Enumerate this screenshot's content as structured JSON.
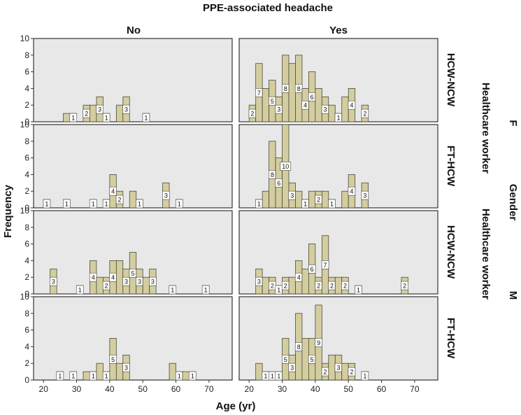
{
  "chart_data": {
    "type": "histogram",
    "title": "PPE-associated headache",
    "xlabel": "Age (yr)",
    "ylabel": "Frequency",
    "right_outer_label": "Gender",
    "right_inner_label": "Healthcare worker",
    "column_panels": [
      "No",
      "Yes"
    ],
    "gender_groups": [
      "F",
      "M"
    ],
    "row_panels": [
      "HCW-NCW",
      "FT-HCW",
      "HCW-NCW",
      "FT-HCW"
    ],
    "xlim": [
      17,
      77
    ],
    "ylim": [
      0,
      10
    ],
    "x_ticks": [
      "20",
      "30",
      "40",
      "50",
      "60",
      "70"
    ],
    "y_ticks": [
      "0",
      "2",
      "4",
      "6",
      "8",
      "10"
    ],
    "colors": {
      "panel_bg": "#e8e8e8",
      "bar_fill": "#d3cda0",
      "bar_stroke": "#4a4a3a",
      "label_box": "#ffffff"
    },
    "panels": [
      {
        "row": 0,
        "col": 0,
        "bars": [
          {
            "x": 27,
            "v": 1,
            "label": ""
          },
          {
            "x": 29,
            "v": 1,
            "label": "1"
          },
          {
            "x": 33,
            "v": 2,
            "label": "2"
          },
          {
            "x": 35,
            "v": 2,
            "label": ""
          },
          {
            "x": 37,
            "v": 3,
            "label": "3"
          },
          {
            "x": 39,
            "v": 1,
            "label": "1"
          },
          {
            "x": 43,
            "v": 2,
            "label": ""
          },
          {
            "x": 45,
            "v": 3,
            "label": "3"
          },
          {
            "x": 51,
            "v": 1,
            "label": "1"
          }
        ]
      },
      {
        "row": 0,
        "col": 1,
        "bars": [
          {
            "x": 21,
            "v": 2,
            "label": "2"
          },
          {
            "x": 23,
            "v": 7,
            "label": "7"
          },
          {
            "x": 25,
            "v": 4,
            "label": ""
          },
          {
            "x": 27,
            "v": 5,
            "label": "5"
          },
          {
            "x": 29,
            "v": 3,
            "label": "3"
          },
          {
            "x": 31,
            "v": 8,
            "label": "8"
          },
          {
            "x": 33,
            "v": 7,
            "label": ""
          },
          {
            "x": 35,
            "v": 8,
            "label": "8"
          },
          {
            "x": 37,
            "v": 4,
            "label": "4"
          },
          {
            "x": 39,
            "v": 6,
            "label": "6"
          },
          {
            "x": 41,
            "v": 4,
            "label": ""
          },
          {
            "x": 43,
            "v": 3,
            "label": "3"
          },
          {
            "x": 45,
            "v": 2,
            "label": ""
          },
          {
            "x": 47,
            "v": 1,
            "label": "1"
          },
          {
            "x": 49,
            "v": 3,
            "label": ""
          },
          {
            "x": 51,
            "v": 4,
            "label": "4"
          },
          {
            "x": 55,
            "v": 2,
            "label": "2"
          }
        ]
      },
      {
        "row": 1,
        "col": 0,
        "bars": [
          {
            "x": 21,
            "v": 1,
            "label": "1"
          },
          {
            "x": 27,
            "v": 1,
            "label": "1"
          },
          {
            "x": 35,
            "v": 1,
            "label": "1"
          },
          {
            "x": 39,
            "v": 1,
            "label": "1"
          },
          {
            "x": 41,
            "v": 4,
            "label": "4"
          },
          {
            "x": 43,
            "v": 2,
            "label": "2"
          },
          {
            "x": 47,
            "v": 2,
            "label": ""
          },
          {
            "x": 49,
            "v": 1,
            "label": "1"
          },
          {
            "x": 57,
            "v": 3,
            "label": "3"
          },
          {
            "x": 61,
            "v": 1,
            "label": "1"
          }
        ]
      },
      {
        "row": 1,
        "col": 1,
        "bars": [
          {
            "x": 23,
            "v": 1,
            "label": "1"
          },
          {
            "x": 25,
            "v": 2,
            "label": ""
          },
          {
            "x": 27,
            "v": 8,
            "label": "8"
          },
          {
            "x": 29,
            "v": 6,
            "label": "6"
          },
          {
            "x": 31,
            "v": 10,
            "label": "10"
          },
          {
            "x": 33,
            "v": 3,
            "label": "3"
          },
          {
            "x": 35,
            "v": 2,
            "label": ""
          },
          {
            "x": 37,
            "v": 1,
            "label": "1"
          },
          {
            "x": 39,
            "v": 2,
            "label": ""
          },
          {
            "x": 41,
            "v": 2,
            "label": "2"
          },
          {
            "x": 43,
            "v": 2,
            "label": ""
          },
          {
            "x": 45,
            "v": 1,
            "label": "1"
          },
          {
            "x": 49,
            "v": 2,
            "label": ""
          },
          {
            "x": 51,
            "v": 4,
            "label": "4"
          },
          {
            "x": 55,
            "v": 3,
            "label": "3"
          }
        ]
      },
      {
        "row": 2,
        "col": 0,
        "bars": [
          {
            "x": 23,
            "v": 3,
            "label": "3"
          },
          {
            "x": 31,
            "v": 1,
            "label": "1"
          },
          {
            "x": 35,
            "v": 4,
            "label": "4"
          },
          {
            "x": 37,
            "v": 2,
            "label": ""
          },
          {
            "x": 39,
            "v": 2,
            "label": "2"
          },
          {
            "x": 41,
            "v": 4,
            "label": "4"
          },
          {
            "x": 43,
            "v": 4,
            "label": ""
          },
          {
            "x": 45,
            "v": 3,
            "label": "3"
          },
          {
            "x": 47,
            "v": 5,
            "label": "5"
          },
          {
            "x": 49,
            "v": 3,
            "label": "3"
          },
          {
            "x": 51,
            "v": 2,
            "label": ""
          },
          {
            "x": 53,
            "v": 3,
            "label": "3"
          },
          {
            "x": 59,
            "v": 1,
            "label": "1"
          },
          {
            "x": 69,
            "v": 1,
            "label": "1"
          }
        ]
      },
      {
        "row": 2,
        "col": 1,
        "bars": [
          {
            "x": 23,
            "v": 3,
            "label": "3"
          },
          {
            "x": 25,
            "v": 2,
            "label": ""
          },
          {
            "x": 27,
            "v": 2,
            "label": "2"
          },
          {
            "x": 29,
            "v": 1,
            "label": "1"
          },
          {
            "x": 31,
            "v": 2,
            "label": "2"
          },
          {
            "x": 33,
            "v": 2,
            "label": ""
          },
          {
            "x": 35,
            "v": 4,
            "label": "4"
          },
          {
            "x": 37,
            "v": 3,
            "label": ""
          },
          {
            "x": 39,
            "v": 6,
            "label": "6"
          },
          {
            "x": 41,
            "v": 2,
            "label": "2"
          },
          {
            "x": 43,
            "v": 7,
            "label": "7"
          },
          {
            "x": 45,
            "v": 2,
            "label": "2"
          },
          {
            "x": 47,
            "v": 2,
            "label": ""
          },
          {
            "x": 49,
            "v": 2,
            "label": "2"
          },
          {
            "x": 53,
            "v": 1,
            "label": "1"
          },
          {
            "x": 67,
            "v": 2,
            "label": "2"
          }
        ]
      },
      {
        "row": 3,
        "col": 0,
        "bars": [
          {
            "x": 25,
            "v": 1,
            "label": "1"
          },
          {
            "x": 29,
            "v": 1,
            "label": "1"
          },
          {
            "x": 33,
            "v": 1,
            "label": ""
          },
          {
            "x": 35,
            "v": 1,
            "label": "1"
          },
          {
            "x": 37,
            "v": 2,
            "label": ""
          },
          {
            "x": 39,
            "v": 1,
            "label": "1"
          },
          {
            "x": 41,
            "v": 5,
            "label": "5"
          },
          {
            "x": 43,
            "v": 2,
            "label": ""
          },
          {
            "x": 45,
            "v": 3,
            "label": "3"
          },
          {
            "x": 59,
            "v": 2,
            "label": ""
          },
          {
            "x": 61,
            "v": 1,
            "label": "1"
          },
          {
            "x": 63,
            "v": 1,
            "label": ""
          },
          {
            "x": 65,
            "v": 1,
            "label": "1"
          }
        ]
      },
      {
        "row": 3,
        "col": 1,
        "bars": [
          {
            "x": 23,
            "v": 2,
            "label": ""
          },
          {
            "x": 25,
            "v": 1,
            "label": "1"
          },
          {
            "x": 27,
            "v": 1,
            "label": "1"
          },
          {
            "x": 29,
            "v": 1,
            "label": "1"
          },
          {
            "x": 31,
            "v": 5,
            "label": "5"
          },
          {
            "x": 33,
            "v": 3,
            "label": "3"
          },
          {
            "x": 35,
            "v": 8,
            "label": "8"
          },
          {
            "x": 37,
            "v": 5,
            "label": ""
          },
          {
            "x": 39,
            "v": 5,
            "label": "5"
          },
          {
            "x": 41,
            "v": 9,
            "label": "9"
          },
          {
            "x": 43,
            "v": 2,
            "label": "2"
          },
          {
            "x": 45,
            "v": 3,
            "label": ""
          },
          {
            "x": 47,
            "v": 3,
            "label": "3"
          },
          {
            "x": 49,
            "v": 2,
            "label": ""
          },
          {
            "x": 51,
            "v": 2,
            "label": "2"
          },
          {
            "x": 55,
            "v": 1,
            "label": "1"
          }
        ]
      }
    ]
  }
}
